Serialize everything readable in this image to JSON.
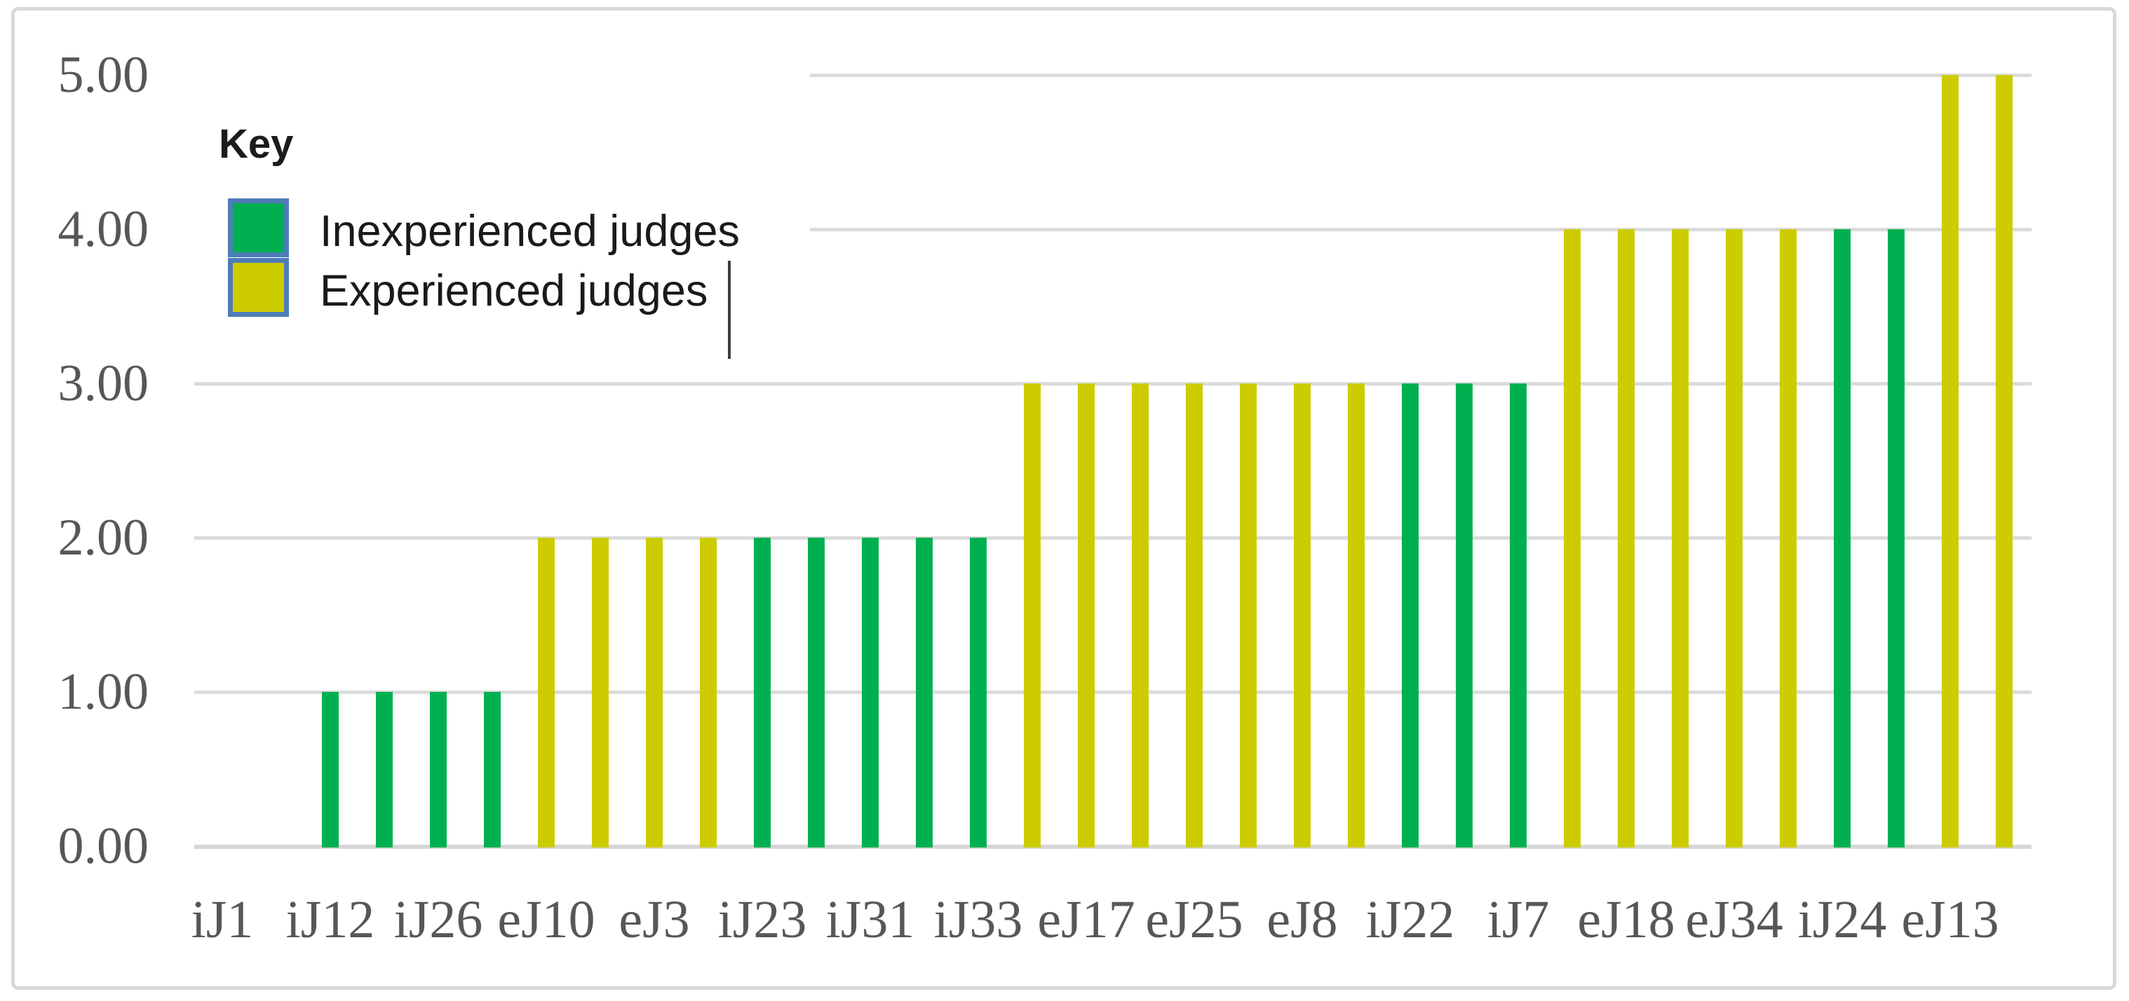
{
  "figure": {
    "background": "#ffffff",
    "border_color": "#d9d9d9"
  },
  "colors": {
    "inexperienced_green": "#00B050",
    "experienced_yellow": "#CCCC00",
    "swatch_border_blue": "#4E7CB8",
    "gridline_gray": "#DBDBDB",
    "axis_text_gray": "#575757",
    "legend_text": "#1A1A1A"
  },
  "legend": {
    "title": "Key",
    "items": [
      {
        "label": "Inexperienced judges",
        "series": "inexperienced",
        "color": "#00B050"
      },
      {
        "label": "Experienced judges",
        "series": "experienced",
        "color": "#CCCC00"
      }
    ],
    "text_cursor_visible": true
  },
  "chart_data": {
    "type": "bar",
    "title": "",
    "xlabel": "",
    "ylabel": "",
    "ylim": [
      0,
      5
    ],
    "grid": "horizontal",
    "legend_position": "upper-left-inside",
    "ytick_labels": [
      "0.00",
      "1.00",
      "2.00",
      "3.00",
      "4.00",
      "5.00"
    ],
    "xtick_labels": [
      "iJ1",
      "iJ12",
      "iJ26",
      "eJ10",
      "eJ3",
      "iJ23",
      "iJ31",
      "iJ33",
      "eJ17",
      "eJ25",
      "eJ8",
      "iJ22",
      "iJ7",
      "eJ18",
      "eJ34",
      "iJ24",
      "eJ13"
    ],
    "note": "34 category slots; axis labels appear under every other slot; slots 0-1 have no visible bar (value 0)",
    "slots": [
      {
        "label": "iJ1",
        "value": 0,
        "series": null
      },
      {
        "label": "",
        "value": 0,
        "series": null
      },
      {
        "label": "iJ12",
        "value": 1,
        "series": "inexperienced"
      },
      {
        "label": "",
        "value": 1,
        "series": "inexperienced"
      },
      {
        "label": "iJ26",
        "value": 1,
        "series": "inexperienced"
      },
      {
        "label": "",
        "value": 1,
        "series": "inexperienced"
      },
      {
        "label": "eJ10",
        "value": 2,
        "series": "experienced"
      },
      {
        "label": "",
        "value": 2,
        "series": "experienced"
      },
      {
        "label": "eJ3",
        "value": 2,
        "series": "experienced"
      },
      {
        "label": "",
        "value": 2,
        "series": "experienced"
      },
      {
        "label": "iJ23",
        "value": 2,
        "series": "inexperienced"
      },
      {
        "label": "",
        "value": 2,
        "series": "inexperienced"
      },
      {
        "label": "iJ31",
        "value": 2,
        "series": "inexperienced"
      },
      {
        "label": "",
        "value": 2,
        "series": "inexperienced"
      },
      {
        "label": "iJ33",
        "value": 2,
        "series": "inexperienced"
      },
      {
        "label": "",
        "value": 3,
        "series": "experienced"
      },
      {
        "label": "eJ17",
        "value": 3,
        "series": "experienced"
      },
      {
        "label": "",
        "value": 3,
        "series": "experienced"
      },
      {
        "label": "eJ25",
        "value": 3,
        "series": "experienced"
      },
      {
        "label": "",
        "value": 3,
        "series": "experienced"
      },
      {
        "label": "eJ8",
        "value": 3,
        "series": "experienced"
      },
      {
        "label": "",
        "value": 3,
        "series": "experienced"
      },
      {
        "label": "iJ22",
        "value": 3,
        "series": "inexperienced"
      },
      {
        "label": "",
        "value": 3,
        "series": "inexperienced"
      },
      {
        "label": "iJ7",
        "value": 3,
        "series": "inexperienced"
      },
      {
        "label": "",
        "value": 4,
        "series": "experienced"
      },
      {
        "label": "eJ18",
        "value": 4,
        "series": "experienced"
      },
      {
        "label": "",
        "value": 4,
        "series": "experienced"
      },
      {
        "label": "eJ34",
        "value": 4,
        "series": "experienced"
      },
      {
        "label": "",
        "value": 4,
        "series": "experienced"
      },
      {
        "label": "iJ24",
        "value": 4,
        "series": "inexperienced"
      },
      {
        "label": "",
        "value": 4,
        "series": "inexperienced"
      },
      {
        "label": "eJ13",
        "value": 5,
        "series": "experienced"
      },
      {
        "label": "",
        "value": 5,
        "series": "experienced"
      }
    ]
  }
}
